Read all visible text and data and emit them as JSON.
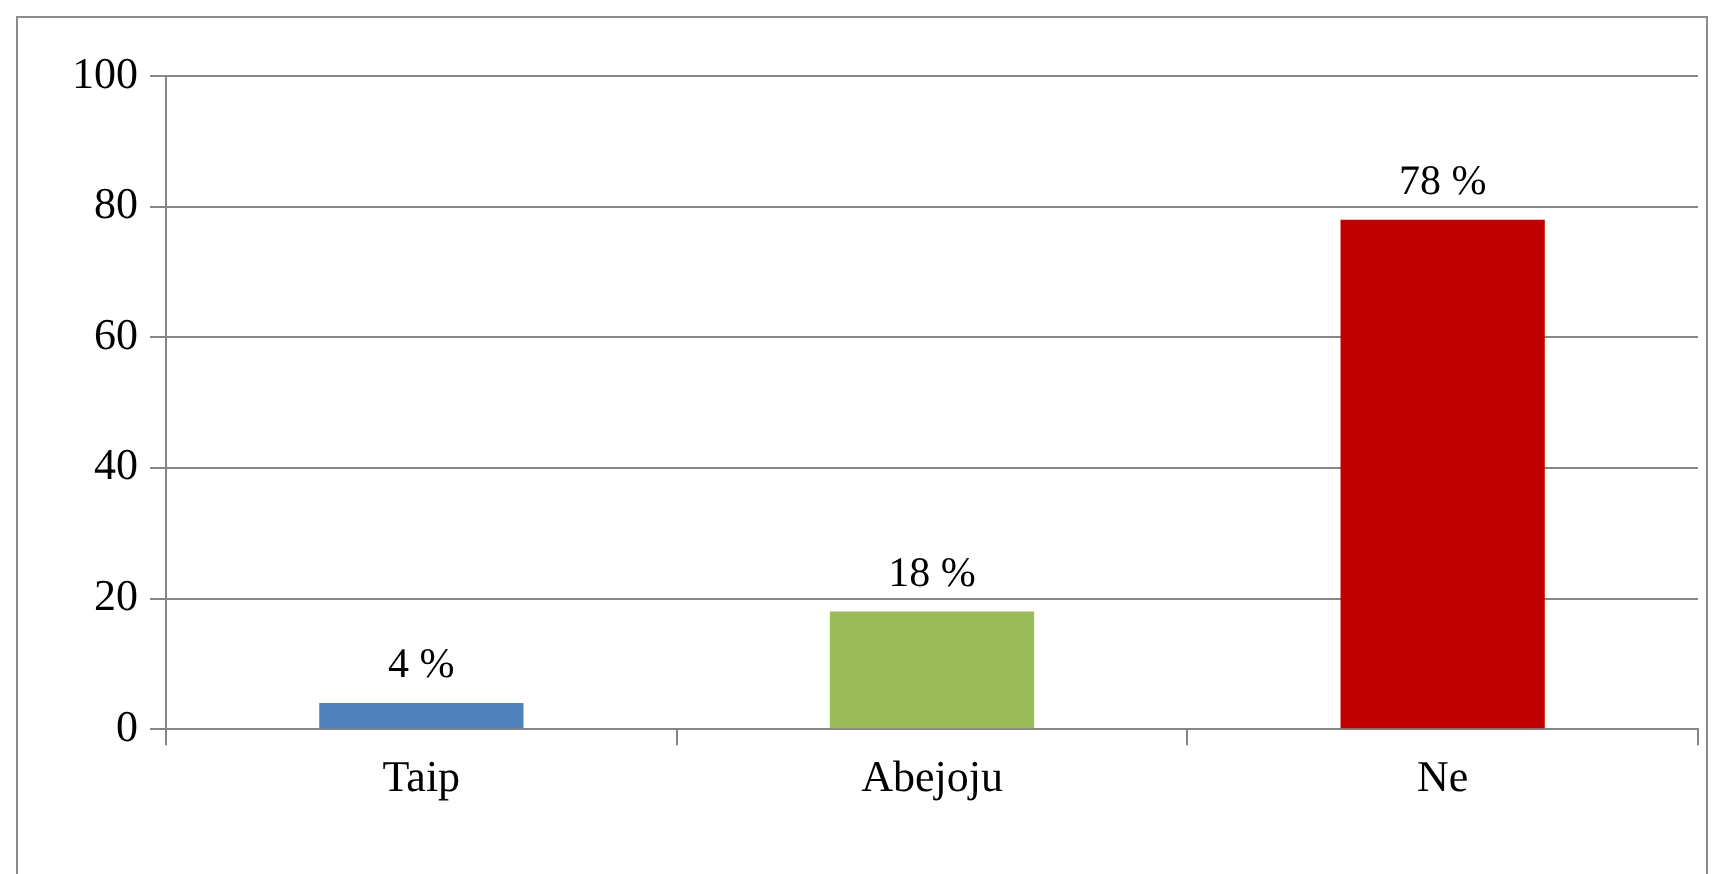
{
  "chart_data": {
    "type": "bar",
    "categories": [
      "Taip",
      "Abejoju",
      "Ne"
    ],
    "values": [
      4,
      18,
      78
    ],
    "colors": [
      "#4f81bd",
      "#9bbb59",
      "#c00000"
    ],
    "value_labels": [
      "4 %",
      "18 %",
      "78 %"
    ],
    "ylim": [
      0,
      100
    ],
    "yticks": [
      0,
      20,
      40,
      60,
      80,
      100
    ],
    "grid": "y",
    "legend": false
  }
}
